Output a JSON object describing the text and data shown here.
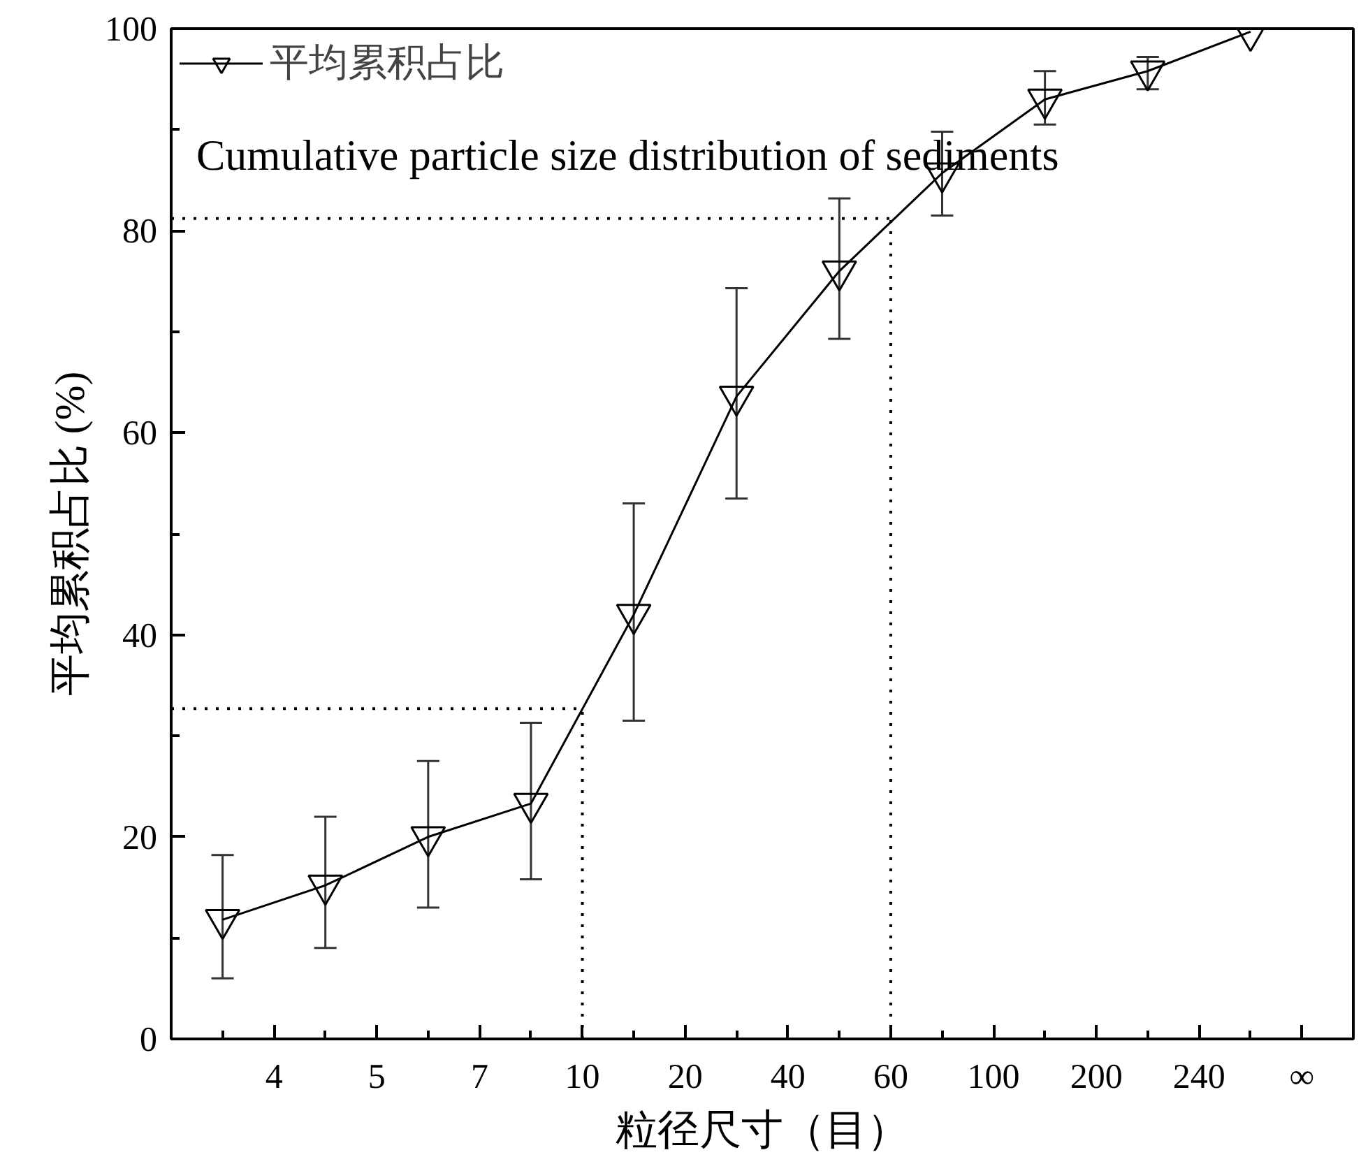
{
  "chart_data": {
    "type": "line",
    "xlabel": "粒径尺寸（目）",
    "ylabel": "平均累积占比 (%)",
    "annotations": [
      "Cumulative particle size distribution of sediments"
    ],
    "categories": [
      null,
      "4",
      null,
      "5",
      null,
      "7",
      null,
      "10",
      null,
      "20",
      null,
      "40",
      null,
      "60",
      null,
      "100",
      null,
      "200",
      null,
      "240",
      null,
      "∞"
    ],
    "ylim": [
      0,
      100
    ],
    "yticks": [
      0,
      {
        "value": 10,
        "label": null
      },
      20,
      {
        "value": 30,
        "label": null
      },
      40,
      {
        "value": 50,
        "label": null
      },
      60,
      {
        "value": 70,
        "label": null
      },
      80,
      {
        "value": 90,
        "label": null
      },
      100
    ],
    "grid": false,
    "legend": "top left",
    "marker": "triangle",
    "line_style": "solid",
    "ref_lines": [
      {
        "axis": "x",
        "value": "10",
        "line_style": "dotted",
        "color": "#000000"
      },
      {
        "axis": "y",
        "value": 32.7,
        "line_style": "dotted",
        "color": "#000000"
      },
      {
        "axis": "x",
        "value": "60",
        "line_style": "dotted",
        "color": "#000000"
      },
      {
        "axis": "y",
        "value": 81.2,
        "line_style": "dotted",
        "color": "#000000"
      }
    ],
    "series": [
      {
        "name": "平均累积占比",
        "color": "#000000",
        "values": [
          11.8,
          null,
          15.2,
          null,
          20,
          null,
          23.3,
          null,
          42,
          null,
          63.6,
          null,
          76,
          null,
          85.7,
          null,
          93,
          null,
          95.8,
          null,
          99.7,
          null
        ],
        "errors": [
          [
            6,
            18.2
          ],
          null,
          [
            9,
            22
          ],
          null,
          [
            13,
            27.5
          ],
          null,
          [
            15.8,
            31.3
          ],
          null,
          [
            31.5,
            53
          ],
          null,
          [
            53.5,
            74.3
          ],
          null,
          [
            69.3,
            83.2
          ],
          null,
          [
            81.5,
            89.8
          ],
          null,
          [
            90.5,
            95.8
          ],
          null,
          [
            94,
            97.2
          ],
          null,
          null,
          null
        ]
      }
    ]
  }
}
